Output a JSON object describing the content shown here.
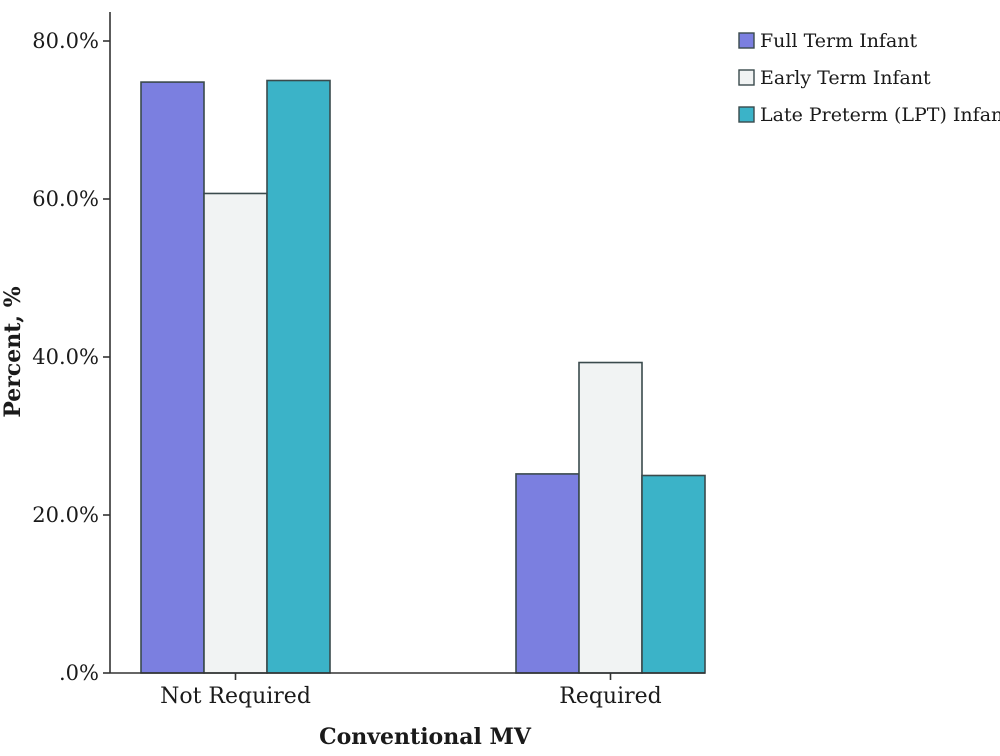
{
  "chart_data": {
    "type": "bar",
    "title": "",
    "xlabel": "Conventional MV",
    "ylabel": "Percent, %",
    "categories": [
      "Not Required",
      "Required"
    ],
    "series": [
      {
        "name": "Full Term Infant",
        "values": [
          74.8,
          25.2
        ],
        "color": "#7b7fe0"
      },
      {
        "name": "Early Term Infant",
        "values": [
          60.7,
          39.3
        ],
        "color": "#f1f3f3"
      },
      {
        "name": "Late Preterm (LPT) Infant",
        "values": [
          75.0,
          25.0
        ],
        "color": "#3bb3c8"
      }
    ],
    "ylim": [
      0,
      80
    ],
    "yticks": [
      0,
      20,
      40,
      60,
      80
    ],
    "ytick_labels": [
      ".0%",
      "20.0%",
      "40.0%",
      "60.0%",
      "80.0%"
    ],
    "grid": false,
    "legend_position": "top-right",
    "bar_edge_color": "#3a4a4c"
  }
}
